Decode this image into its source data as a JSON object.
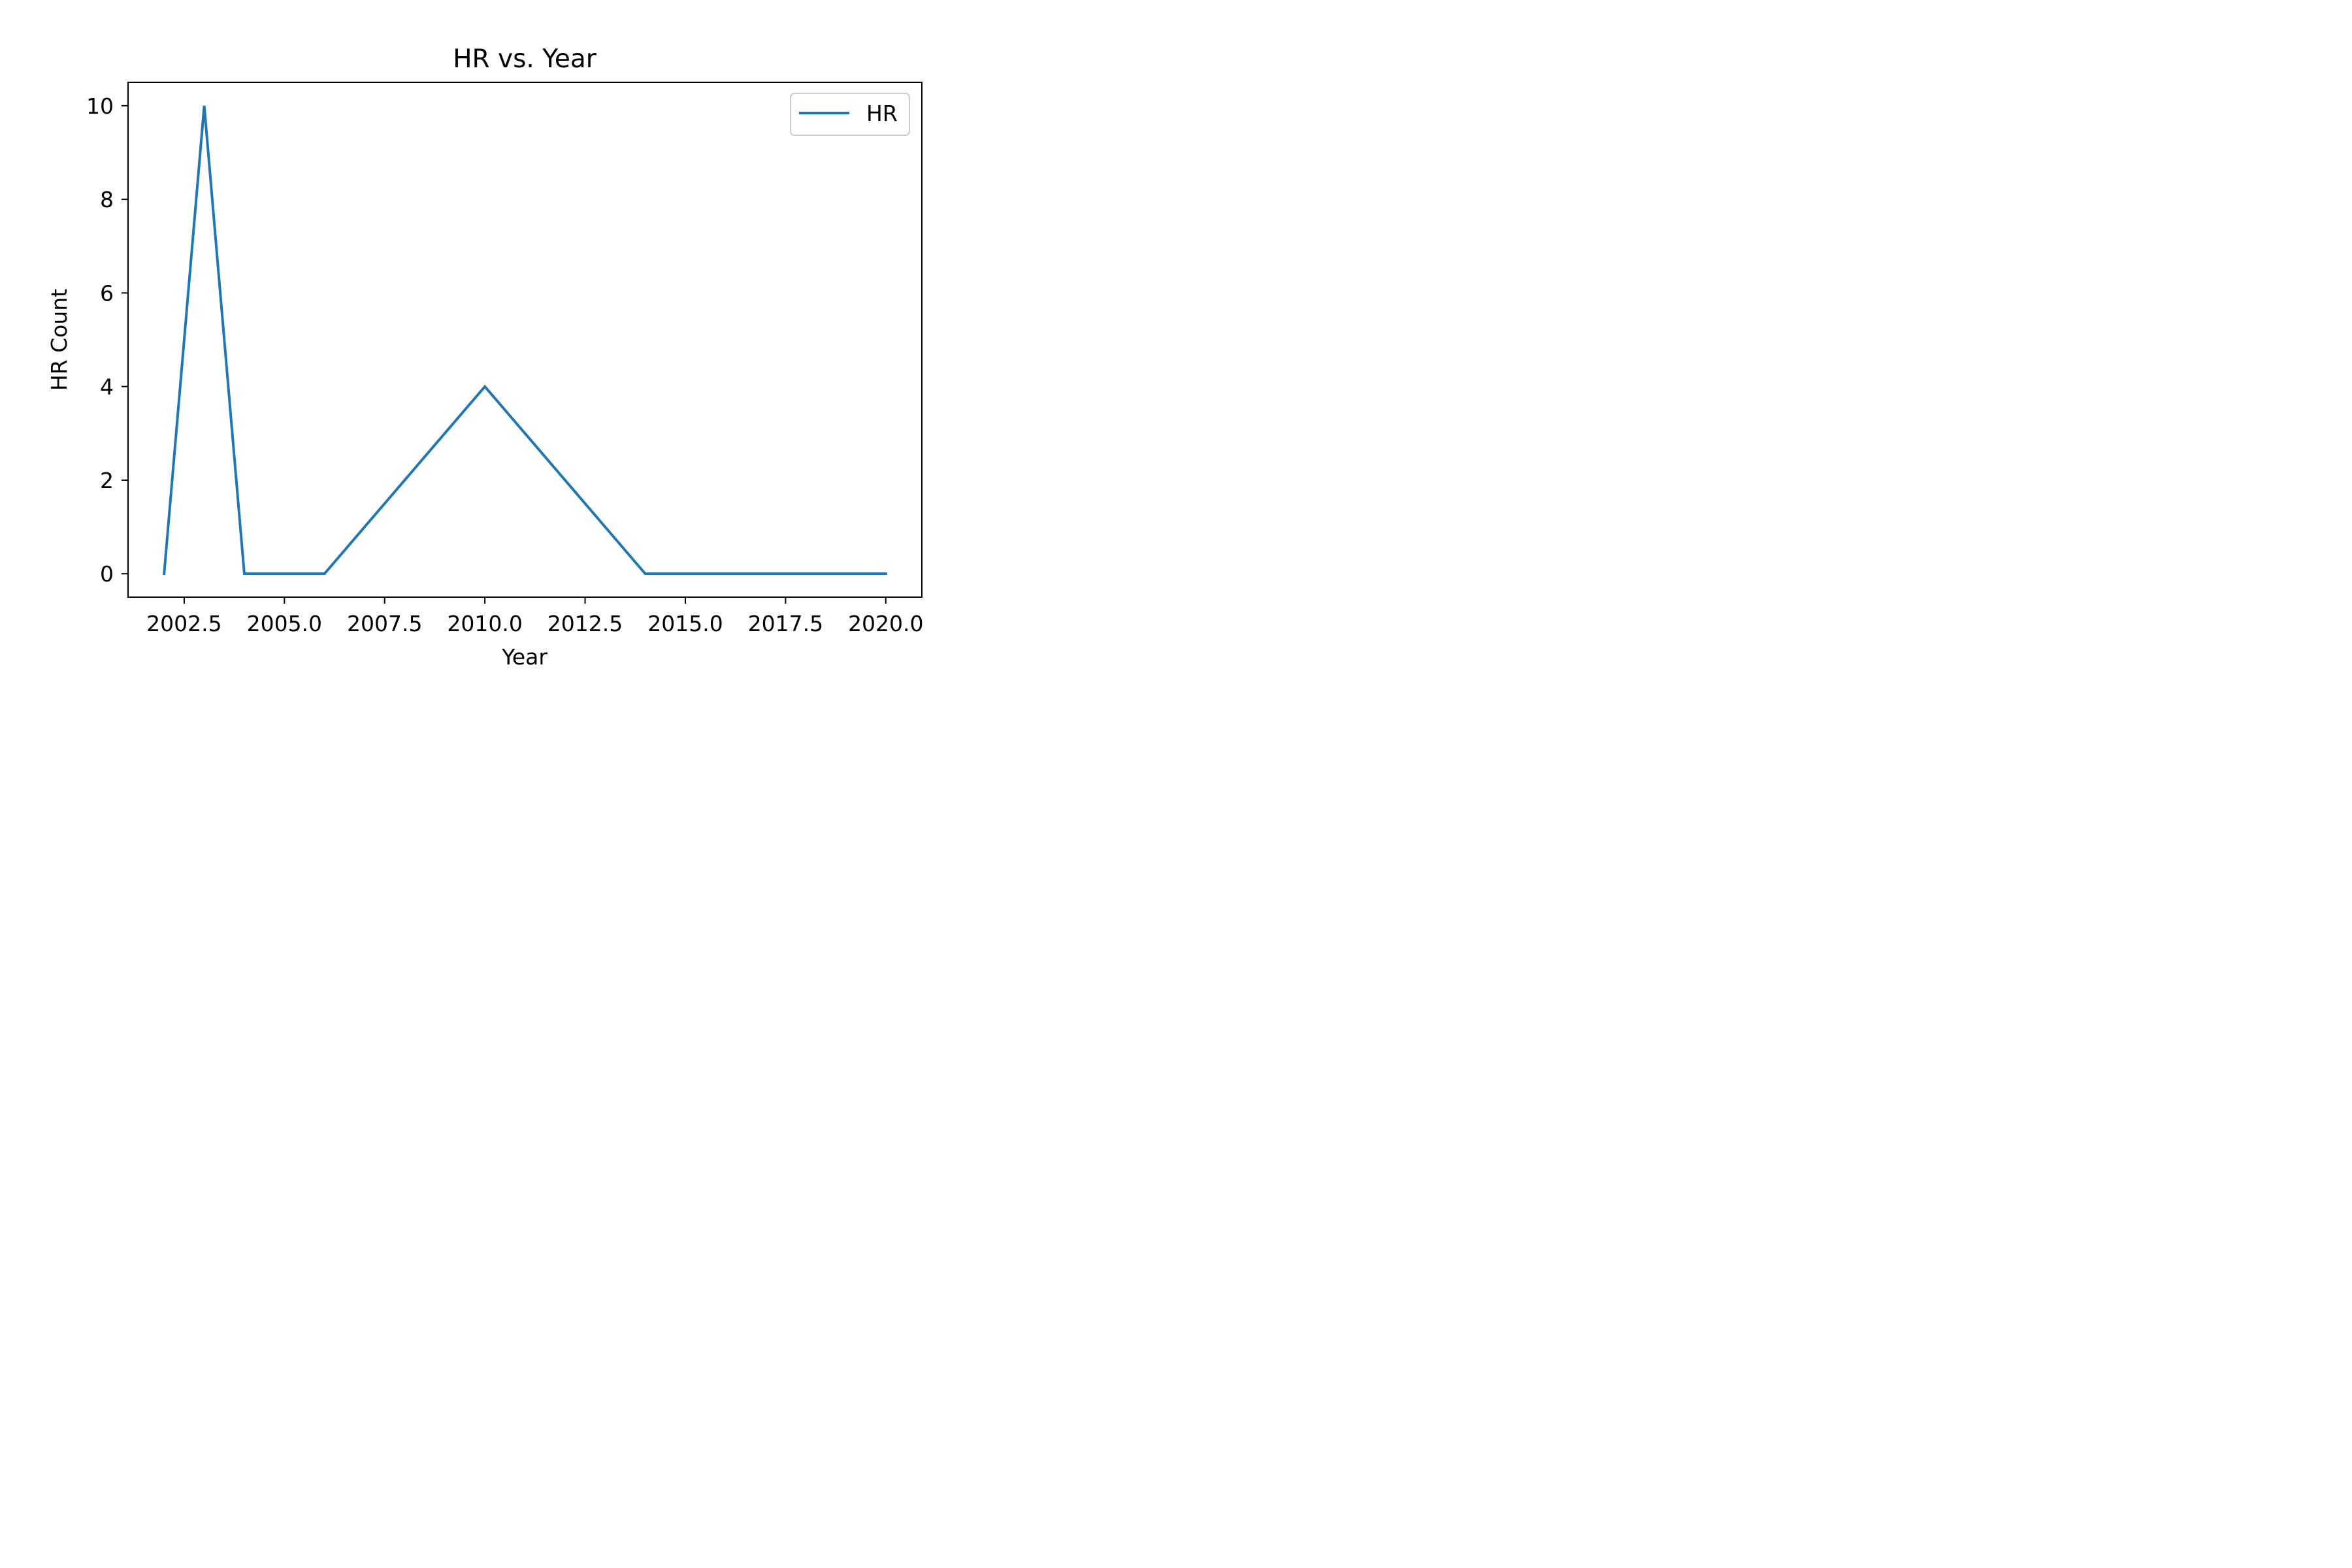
{
  "chart_data": {
    "type": "line",
    "title": "HR vs. Year",
    "xlabel": "Year",
    "ylabel": "HR Count",
    "x": [
      2002,
      2003,
      2004,
      2006,
      2010,
      2014,
      2020
    ],
    "series": [
      {
        "name": "HR",
        "values": [
          0,
          10,
          0,
          0,
          4,
          0,
          0
        ],
        "color": "#1f77b4"
      }
    ],
    "xlim": [
      2001.1,
      2020.9
    ],
    "ylim": [
      -0.5,
      10.5
    ],
    "xticks": [
      2002.5,
      2005.0,
      2007.5,
      2010.0,
      2012.5,
      2015.0,
      2017.5,
      2020.0
    ],
    "xtick_labels": [
      "2002.5",
      "2005.0",
      "2007.5",
      "2010.0",
      "2012.5",
      "2015.0",
      "2017.5",
      "2020.0"
    ],
    "yticks": [
      0,
      2,
      4,
      6,
      8,
      10
    ],
    "ytick_labels": [
      "0",
      "2",
      "4",
      "6",
      "8",
      "10"
    ],
    "grid": false,
    "legend": "top-right"
  }
}
